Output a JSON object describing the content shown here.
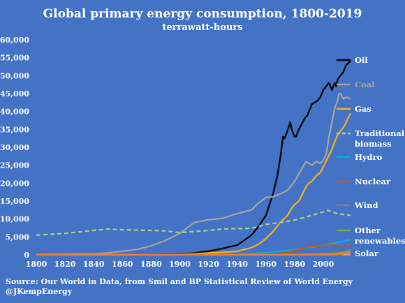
{
  "title": "Global primary energy consumption, 1800-2019",
  "subtitle": "terrawatt-hours",
  "source_line1": "Source: Our World in Data, from Smil and BP Statistical Review of World Energy",
  "source_line2": "@JKempEnergy",
  "chart_data": {
    "type": "line",
    "title": "Global primary energy consumption, 1800-2019",
    "subtitle": "terrawatt-hours",
    "xlabel": "",
    "ylabel": "",
    "xlim": [
      1800,
      2019
    ],
    "ylim": [
      0,
      60000
    ],
    "x_ticks": [
      1800,
      1820,
      1840,
      1860,
      1880,
      1900,
      1920,
      1940,
      1960,
      1980,
      2000
    ],
    "y_ticks": [
      0,
      5000,
      10000,
      15000,
      20000,
      25000,
      30000,
      35000,
      40000,
      45000,
      50000,
      55000,
      60000
    ],
    "y_tick_labels": [
      "0",
      "5,000",
      "10,000",
      "15,000",
      "20,000",
      "25,000",
      "30,000",
      "35,000",
      "40,000",
      "45,000",
      "50,000",
      "55,000",
      "60,000"
    ],
    "grid": false,
    "legend_position": "right",
    "series": [
      {
        "name": "Oil",
        "color": "#000000",
        "dash": "solid",
        "legend_color": "#000000",
        "points": [
          [
            1800,
            0
          ],
          [
            1860,
            0
          ],
          [
            1880,
            50
          ],
          [
            1900,
            200
          ],
          [
            1910,
            500
          ],
          [
            1920,
            1000
          ],
          [
            1930,
            1800
          ],
          [
            1940,
            2700
          ],
          [
            1950,
            5500
          ],
          [
            1955,
            8000
          ],
          [
            1960,
            11000
          ],
          [
            1965,
            17000
          ],
          [
            1968,
            22000
          ],
          [
            1970,
            27000
          ],
          [
            1972,
            33000
          ],
          [
            1973,
            32500
          ],
          [
            1975,
            34500
          ],
          [
            1977,
            37000
          ],
          [
            1978,
            35000
          ],
          [
            1980,
            33000
          ],
          [
            1981,
            33000
          ],
          [
            1983,
            35000
          ],
          [
            1985,
            36500
          ],
          [
            1987,
            38000
          ],
          [
            1989,
            39000
          ],
          [
            1990,
            40000
          ],
          [
            1992,
            42000
          ],
          [
            1994,
            42500
          ],
          [
            1996,
            43000
          ],
          [
            1998,
            44000
          ],
          [
            2000,
            46000
          ],
          [
            2002,
            47000
          ],
          [
            2004,
            48000
          ],
          [
            2006,
            46000
          ],
          [
            2008,
            48000
          ],
          [
            2009,
            47000
          ],
          [
            2010,
            49000
          ],
          [
            2012,
            50000
          ],
          [
            2014,
            51000
          ],
          [
            2016,
            53000
          ],
          [
            2019,
            54000
          ]
        ]
      },
      {
        "name": "Coal",
        "color": "#a5a5a5",
        "dash": "solid",
        "legend_color": "#a5a5a5",
        "points": [
          [
            1800,
            100
          ],
          [
            1820,
            200
          ],
          [
            1840,
            300
          ],
          [
            1850,
            500
          ],
          [
            1860,
            1000
          ],
          [
            1870,
            1500
          ],
          [
            1880,
            2500
          ],
          [
            1890,
            4000
          ],
          [
            1900,
            6000
          ],
          [
            1910,
            9000
          ],
          [
            1920,
            9800
          ],
          [
            1930,
            10200
          ],
          [
            1940,
            11500
          ],
          [
            1950,
            12500
          ],
          [
            1955,
            14500
          ],
          [
            1960,
            16000
          ],
          [
            1965,
            16200
          ],
          [
            1970,
            17000
          ],
          [
            1975,
            18000
          ],
          [
            1980,
            20500
          ],
          [
            1985,
            24000
          ],
          [
            1988,
            26000
          ],
          [
            1990,
            25500
          ],
          [
            1992,
            25000
          ],
          [
            1995,
            26000
          ],
          [
            1998,
            25500
          ],
          [
            2000,
            26500
          ],
          [
            2002,
            28000
          ],
          [
            2004,
            33000
          ],
          [
            2006,
            37000
          ],
          [
            2008,
            41000
          ],
          [
            2010,
            43000
          ],
          [
            2011,
            45000
          ],
          [
            2012,
            45000
          ],
          [
            2014,
            43500
          ],
          [
            2016,
            44000
          ],
          [
            2019,
            43500
          ]
        ]
      },
      {
        "name": "Gas",
        "color": "#f0b323",
        "dash": "solid",
        "legend_color": "#f0b323",
        "points": [
          [
            1800,
            0
          ],
          [
            1880,
            0
          ],
          [
            1900,
            100
          ],
          [
            1910,
            300
          ],
          [
            1920,
            500
          ],
          [
            1930,
            700
          ],
          [
            1940,
            1000
          ],
          [
            1950,
            2000
          ],
          [
            1955,
            3000
          ],
          [
            1960,
            4500
          ],
          [
            1965,
            6500
          ],
          [
            1970,
            9000
          ],
          [
            1975,
            11000
          ],
          [
            1978,
            13000
          ],
          [
            1980,
            14000
          ],
          [
            1983,
            15000
          ],
          [
            1985,
            16500
          ],
          [
            1988,
            19000
          ],
          [
            1990,
            20000
          ],
          [
            1992,
            20500
          ],
          [
            1995,
            22000
          ],
          [
            1998,
            23000
          ],
          [
            2000,
            24500
          ],
          [
            2003,
            27000
          ],
          [
            2005,
            28500
          ],
          [
            2007,
            30500
          ],
          [
            2008,
            31500
          ],
          [
            2010,
            33500
          ],
          [
            2012,
            34500
          ],
          [
            2014,
            35500
          ],
          [
            2016,
            37000
          ],
          [
            2019,
            39500
          ]
        ]
      },
      {
        "name": "Traditional biomass",
        "color": "#a9d18e",
        "dash": "dashed",
        "legend_color": "#a9d18e",
        "points": [
          [
            1800,
            5500
          ],
          [
            1820,
            6000
          ],
          [
            1840,
            6800
          ],
          [
            1850,
            7200
          ],
          [
            1860,
            7000
          ],
          [
            1880,
            6800
          ],
          [
            1890,
            6700
          ],
          [
            1900,
            6200
          ],
          [
            1910,
            6500
          ],
          [
            1920,
            6800
          ],
          [
            1930,
            7200
          ],
          [
            1940,
            7300
          ],
          [
            1950,
            7400
          ],
          [
            1960,
            8500
          ],
          [
            1970,
            9000
          ],
          [
            1980,
            9700
          ],
          [
            1990,
            10800
          ],
          [
            2000,
            12000
          ],
          [
            2003,
            12400
          ],
          [
            2006,
            12000
          ],
          [
            2010,
            11500
          ],
          [
            2015,
            11200
          ],
          [
            2019,
            11000
          ]
        ]
      },
      {
        "name": "Hydro",
        "color": "#00b0f0",
        "dash": "solid",
        "legend_color": "#00b0f0",
        "points": [
          [
            1800,
            0
          ],
          [
            1900,
            0
          ],
          [
            1910,
            50
          ],
          [
            1920,
            100
          ],
          [
            1930,
            150
          ],
          [
            1940,
            200
          ],
          [
            1950,
            350
          ],
          [
            1960,
            600
          ],
          [
            1970,
            1000
          ],
          [
            1980,
            1500
          ],
          [
            1990,
            2000
          ],
          [
            2000,
            2600
          ],
          [
            2010,
            3400
          ],
          [
            2019,
            4200
          ]
        ]
      },
      {
        "name": "Nuclear",
        "color": "#c55a11",
        "dash": "solid",
        "legend_color": "#c55a11",
        "points": [
          [
            1800,
            0
          ],
          [
            1960,
            0
          ],
          [
            1965,
            50
          ],
          [
            1970,
            250
          ],
          [
            1975,
            700
          ],
          [
            1980,
            1200
          ],
          [
            1985,
            1800
          ],
          [
            1990,
            2200
          ],
          [
            1995,
            2400
          ],
          [
            2000,
            2600
          ],
          [
            2005,
            2750
          ],
          [
            2010,
            2700
          ],
          [
            2012,
            2500
          ],
          [
            2015,
            2500
          ],
          [
            2019,
            2800
          ]
        ]
      },
      {
        "name": "Wind",
        "color": "#7f7f7f",
        "dash": "solid",
        "legend_color": "#7f7f7f",
        "points": [
          [
            1800,
            0
          ],
          [
            1990,
            0
          ],
          [
            2000,
            30
          ],
          [
            2005,
            100
          ],
          [
            2010,
            350
          ],
          [
            2015,
            800
          ],
          [
            2019,
            1400
          ]
        ]
      },
      {
        "name": "Other renewables",
        "color": "#70ad47",
        "dash": "solid",
        "legend_color": "#70ad47",
        "points": [
          [
            1800,
            0
          ],
          [
            1970,
            0
          ],
          [
            1980,
            100
          ],
          [
            1990,
            200
          ],
          [
            2000,
            300
          ],
          [
            2010,
            550
          ],
          [
            2019,
            900
          ]
        ]
      },
      {
        "name": "Solar",
        "color": "#ed7d31",
        "dash": "solid",
        "legend_color": "#ed7d31",
        "points": [
          [
            1800,
            0
          ],
          [
            2005,
            0
          ],
          [
            2010,
            50
          ],
          [
            2013,
            150
          ],
          [
            2016,
            350
          ],
          [
            2019,
            720
          ]
        ]
      }
    ]
  }
}
